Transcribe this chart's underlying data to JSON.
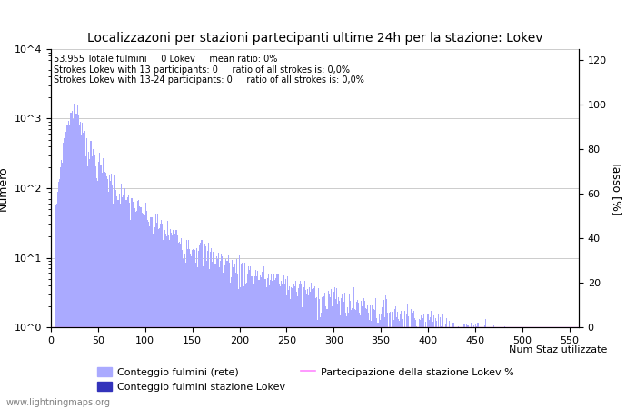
{
  "title": "Localizzazoni per stazioni partecipanti ultime 24h per la stazione: Lokev",
  "xlabel": "Num Staz utilizzate",
  "ylabel_left": "Numero",
  "ylabel_right": "Tasso [%]",
  "annotation_line1": "53.955 Totale fulmini     0 Lokev     mean ratio: 0%",
  "annotation_line2": "Strokes Lokev with 13 participants: 0     ratio of all strokes is: 0,0%",
  "annotation_line3": "Strokes Lokev with 13-24 participants: 0     ratio of all strokes is: 0,0%",
  "watermark": "www.lightningmaps.org",
  "bar_color_light": "#aaaaff",
  "bar_color_dark": "#3333bb",
  "line_color": "#ff88ff",
  "xlim": [
    0,
    560
  ],
  "ylim_log": [
    1,
    10000
  ],
  "ylim_right": [
    0,
    125
  ],
  "xticks": [
    0,
    50,
    100,
    150,
    200,
    250,
    300,
    350,
    400,
    450,
    500,
    550
  ],
  "yticks_right": [
    0,
    20,
    40,
    60,
    80,
    100,
    120
  ],
  "grid_color": "#cccccc",
  "background_color": "#ffffff",
  "fig_width": 7.0,
  "fig_height": 4.5,
  "dpi": 100
}
